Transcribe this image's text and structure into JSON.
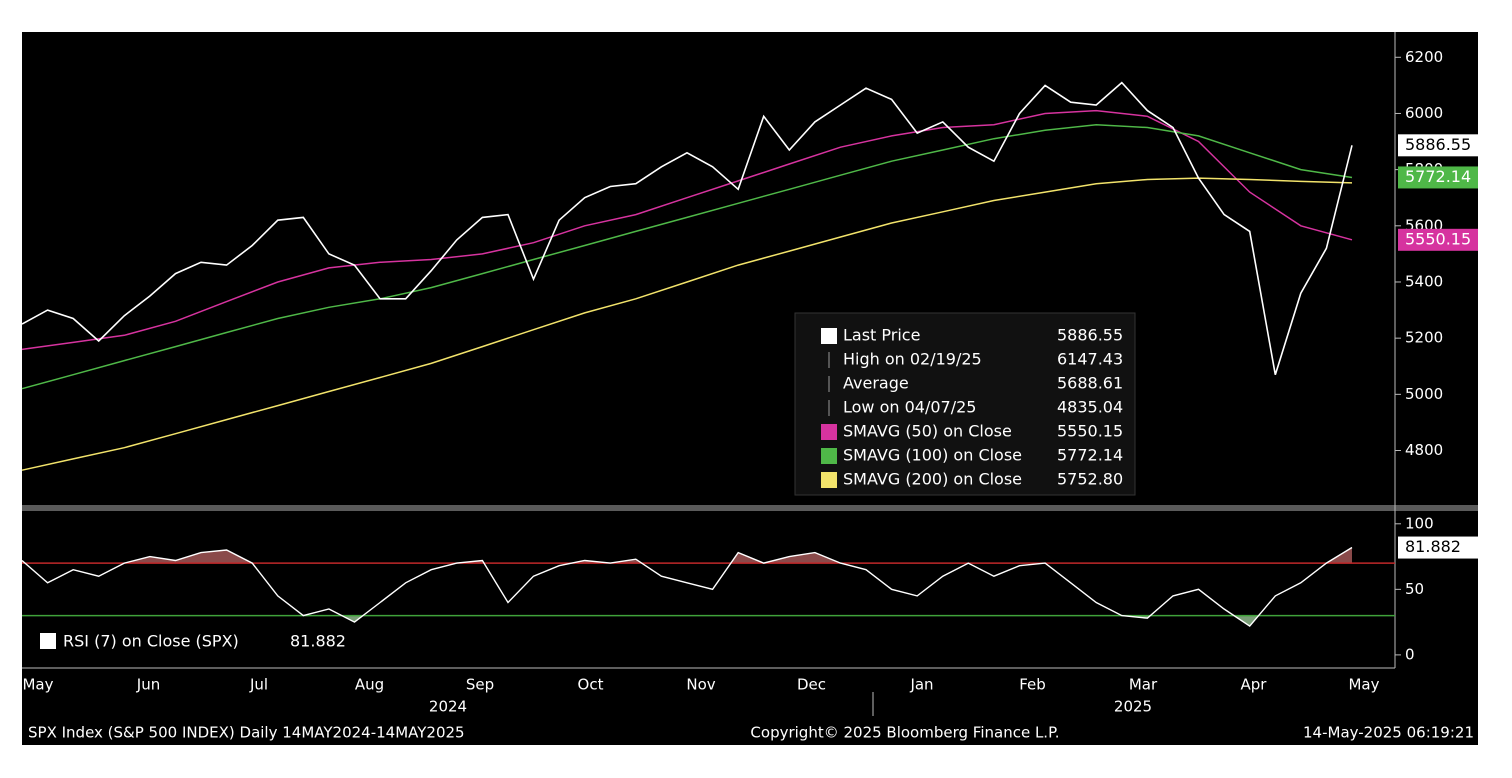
{
  "chart_data": {
    "type": "line",
    "months": [
      "May",
      "Jun",
      "Jul",
      "Aug",
      "Sep",
      "Oct",
      "Nov",
      "Dec",
      "Jan",
      "Feb",
      "Mar",
      "Apr",
      "May"
    ],
    "years": [
      "2024",
      "2025"
    ],
    "ylim": [
      4606,
      6290
    ],
    "yticks": [
      4800,
      5000,
      5200,
      5400,
      5600,
      5800,
      6000,
      6200
    ],
    "series": [
      {
        "name": "Last Price",
        "color": "#ffffff",
        "legend_value": "5886.55",
        "values": [
          5250,
          5300,
          5270,
          5190,
          5280,
          5350,
          5430,
          5470,
          5460,
          5530,
          5620,
          5630,
          5500,
          5460,
          5340,
          5340,
          5440,
          5550,
          5630,
          5640,
          5410,
          5620,
          5700,
          5740,
          5750,
          5810,
          5860,
          5810,
          5730,
          5990,
          5870,
          5970,
          6030,
          6090,
          6050,
          5930,
          5970,
          5880,
          5830,
          6000,
          6100,
          6040,
          6030,
          6110,
          6010,
          5950,
          5770,
          5640,
          5580,
          5070,
          5360,
          5520,
          5886.55
        ]
      },
      {
        "name": "SMAVG (50)  on Close",
        "color": "#d6339f",
        "legend_value": "5550.15",
        "values": [
          5160,
          5185,
          5210,
          5260,
          5330,
          5400,
          5450,
          5470,
          5480,
          5500,
          5540,
          5600,
          5640,
          5700,
          5760,
          5820,
          5880,
          5920,
          5950,
          5960,
          6000,
          6010,
          5990,
          5900,
          5720,
          5600,
          5550.15
        ]
      },
      {
        "name": "SMAVG (100)  on Close",
        "color": "#4fb848",
        "legend_value": "5772.14",
        "values": [
          5020,
          5070,
          5120,
          5170,
          5220,
          5270,
          5310,
          5340,
          5380,
          5430,
          5480,
          5530,
          5580,
          5630,
          5680,
          5730,
          5780,
          5830,
          5870,
          5910,
          5940,
          5960,
          5950,
          5920,
          5860,
          5800,
          5772.14
        ]
      },
      {
        "name": "SMAVG (200)  on Close",
        "color": "#f2e36b",
        "legend_value": "5752.80",
        "values": [
          4730,
          4770,
          4810,
          4860,
          4910,
          4960,
          5010,
          5060,
          5110,
          5170,
          5230,
          5290,
          5340,
          5400,
          5460,
          5510,
          5560,
          5610,
          5650,
          5690,
          5720,
          5750,
          5765,
          5770,
          5765,
          5758,
          5752.8
        ]
      }
    ],
    "stats": [
      {
        "label": "High on 02/19/25",
        "value": 6147.43
      },
      {
        "label": "Average",
        "value": 5688.61
      },
      {
        "label": "Low on 04/07/25",
        "value": 4835.04
      }
    ],
    "rsi": {
      "name": "RSI (7)  on Close (SPX)",
      "ylim": [
        -10,
        109
      ],
      "yticks": [
        0,
        50,
        100
      ],
      "overbought": 70,
      "oversold": 30,
      "values": [
        72,
        55,
        65,
        60,
        70,
        75,
        72,
        78,
        80,
        70,
        45,
        30,
        35,
        25,
        40,
        55,
        65,
        70,
        72,
        40,
        60,
        68,
        72,
        70,
        73,
        60,
        55,
        50,
        78,
        70,
        75,
        78,
        70,
        65,
        50,
        45,
        60,
        70,
        60,
        68,
        70,
        55,
        40,
        30,
        28,
        45,
        50,
        35,
        22,
        45,
        55,
        70,
        81.882
      ]
    },
    "footer": {
      "left": "SPX Index (S&P 500 INDEX)  Daily 14MAY2024-14MAY2025",
      "center": "Copyright© 2025 Bloomberg Finance L.P.",
      "right": "14-May-2025 06:19:21"
    }
  }
}
